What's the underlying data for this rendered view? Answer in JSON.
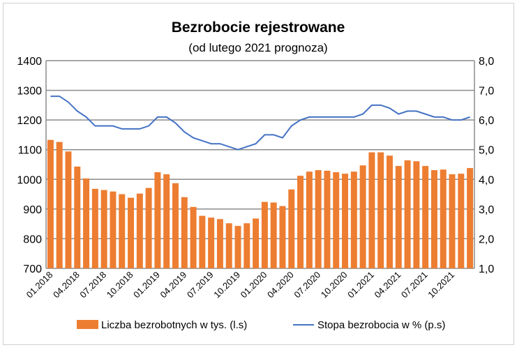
{
  "chart_data": {
    "type": "bar+line",
    "title": "Bezrobocie rejestrowane",
    "subtitle": "(od lutego 2021 prognoza)",
    "categories": [
      "01.2018",
      "02.2018",
      "03.2018",
      "04.2018",
      "05.2018",
      "06.2018",
      "07.2018",
      "08.2018",
      "09.2018",
      "10.2018",
      "11.2018",
      "12.2018",
      "01.2019",
      "02.2019",
      "03.2019",
      "04.2019",
      "05.2019",
      "06.2019",
      "07.2019",
      "08.2019",
      "09.2019",
      "10.2019",
      "11.2019",
      "12.2019",
      "01.2020",
      "02.2020",
      "03.2020",
      "04.2020",
      "05.2020",
      "06.2020",
      "07.2020",
      "08.2020",
      "09.2020",
      "10.2020",
      "11.2020",
      "12.2020",
      "01.2021",
      "02.2021",
      "03.2021",
      "04.2021",
      "05.2021",
      "06.2021",
      "07.2021",
      "08.2021",
      "09.2021",
      "10.2021",
      "11.2021",
      "12.2021"
    ],
    "xtick_labels": [
      "01.2018",
      "04.2018",
      "07.2018",
      "10.2018",
      "01.2019",
      "04.2019",
      "07.2019",
      "10.2019",
      "01.2020",
      "04.2020",
      "07.2020",
      "10.2020",
      "01.2021",
      "04.2021",
      "07.2021",
      "10.2021"
    ],
    "series": [
      {
        "name": "Liczba bezrobotnych w tys. (l.s)",
        "type": "bar",
        "axis": "left",
        "color": "#ED7D31",
        "values": [
          1133,
          1126,
          1094,
          1043,
          1003,
          968,
          964,
          959,
          950,
          938,
          952,
          971,
          1024,
          1017,
          987,
          940,
          907,
          877,
          871,
          866,
          852,
          843,
          852,
          868,
          924,
          922,
          910,
          966,
          1012,
          1026,
          1031,
          1029,
          1024,
          1019,
          1026,
          1047,
          1091,
          1091,
          1080,
          1045,
          1064,
          1061,
          1045,
          1031,
          1033,
          1017,
          1019,
          1038
        ]
      },
      {
        "name": "Stopa bezrobocia w % (p.s)",
        "type": "line",
        "axis": "right",
        "color": "#4472C4",
        "values": [
          6.8,
          6.8,
          6.6,
          6.3,
          6.1,
          5.8,
          5.8,
          5.8,
          5.7,
          5.7,
          5.7,
          5.8,
          6.1,
          6.1,
          5.9,
          5.6,
          5.4,
          5.3,
          5.2,
          5.2,
          5.1,
          5.0,
          5.1,
          5.2,
          5.5,
          5.5,
          5.4,
          5.8,
          6.0,
          6.1,
          6.1,
          6.1,
          6.1,
          6.1,
          6.1,
          6.2,
          6.5,
          6.5,
          6.4,
          6.2,
          6.3,
          6.3,
          6.2,
          6.1,
          6.1,
          6.0,
          6.0,
          6.1
        ]
      }
    ],
    "y_left": {
      "range": [
        700,
        1400
      ],
      "ticks": [
        "700",
        "800",
        "900",
        "1000",
        "1100",
        "1200",
        "1300",
        "1400"
      ]
    },
    "y_right": {
      "range": [
        1.0,
        8.0
      ],
      "ticks": [
        "1,0",
        "2,0",
        "3,0",
        "4,0",
        "5,0",
        "6,0",
        "7,0",
        "8,0"
      ]
    },
    "grid": true,
    "legend": "bottom"
  }
}
